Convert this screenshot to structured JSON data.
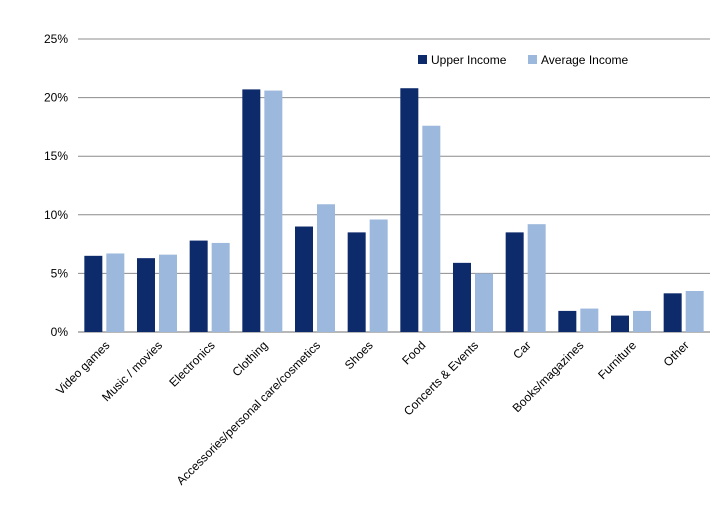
{
  "chart_data": {
    "type": "bar",
    "categories": [
      "Video games",
      "Music / movies",
      "Electronics",
      "Clothing",
      "Accessories/personal care/cosmetics",
      "Shoes",
      "Food",
      "Concerts & Events",
      "Car",
      "Books/magazines",
      "Furniture",
      "Other"
    ],
    "series": [
      {
        "name": "Upper Income",
        "color": "#0d2a6b",
        "values": [
          6.5,
          6.3,
          7.8,
          20.7,
          9.0,
          8.5,
          20.8,
          5.9,
          8.5,
          1.8,
          1.4,
          3.3
        ]
      },
      {
        "name": "Average Income",
        "color": "#9db8dd",
        "values": [
          6.7,
          6.6,
          7.6,
          20.6,
          10.9,
          9.6,
          17.6,
          5.0,
          9.2,
          2.0,
          1.8,
          3.5
        ]
      }
    ],
    "ylim": [
      0,
      25
    ],
    "yticks": [
      0,
      5,
      10,
      15,
      20,
      25
    ],
    "ytick_labels": [
      "0%",
      "5%",
      "10%",
      "15%",
      "20%",
      "25%"
    ],
    "grid": true,
    "legend_position": "top-right"
  }
}
